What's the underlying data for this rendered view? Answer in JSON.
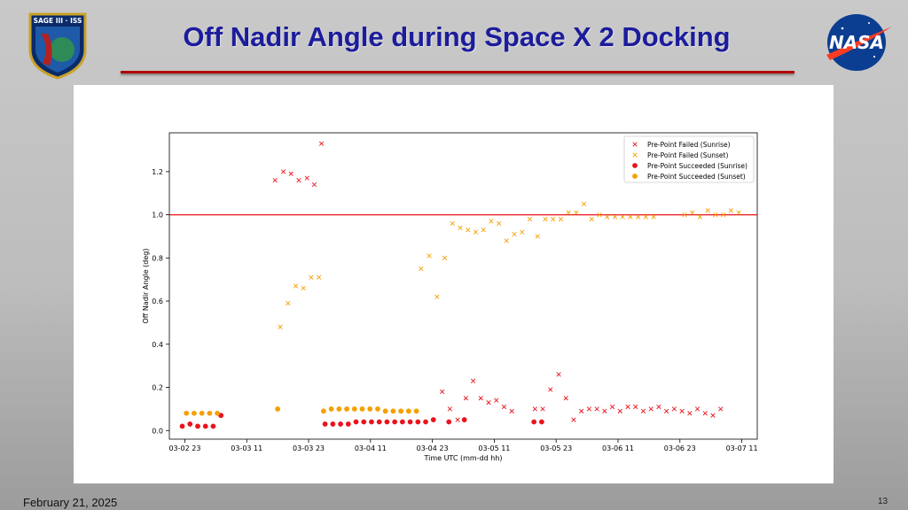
{
  "slide": {
    "title": "Off Nadir Angle during Space X 2 Docking",
    "date": "February 21, 2025",
    "page_number": "13",
    "logo_left_text": "SAGE III · ISS",
    "logo_right_text": "NASA"
  },
  "colors": {
    "title": "#1c1c9c",
    "rule": "#b00000",
    "sunrise": "#e8141c",
    "sunset": "#f5a000",
    "reference_line": "#e8141c"
  },
  "chart_data": {
    "type": "scatter",
    "xlabel": "Time UTC (mm-dd hh)",
    "ylabel": "Off Nadir Angle (deg)",
    "x_ticks": [
      "03-02 23",
      "03-03 11",
      "03-03 23",
      "03-04 11",
      "03-04 23",
      "03-05 11",
      "03-05 23",
      "03-06 11",
      "03-06 23",
      "03-07 11"
    ],
    "x_tick_values": [
      0,
      12,
      24,
      36,
      48,
      60,
      72,
      84,
      96,
      108
    ],
    "x_unit": "hours from 03-02 23",
    "xlim": [
      -3,
      111
    ],
    "ylim": [
      -0.04,
      1.38
    ],
    "y_ticks": [
      0.0,
      0.2,
      0.4,
      0.6,
      0.8,
      1.0,
      1.2
    ],
    "y_tick_labels": [
      "0.0",
      "0.2",
      "0.4",
      "0.6",
      "0.8",
      "1.0",
      "1.2"
    ],
    "reference_line": 1.0,
    "legend_position": "top-right",
    "series": [
      {
        "name": "Pre-Point Failed (Sunrise)",
        "marker": "x",
        "color": "#e8141c",
        "points": [
          [
            17.5,
            1.16
          ],
          [
            19.1,
            1.2
          ],
          [
            20.6,
            1.19
          ],
          [
            22.1,
            1.16
          ],
          [
            23.7,
            1.17
          ],
          [
            25.1,
            1.14
          ],
          [
            26.5,
            1.33
          ],
          [
            49.9,
            0.18
          ],
          [
            51.4,
            0.1
          ],
          [
            52.9,
            0.05
          ],
          [
            54.5,
            0.15
          ],
          [
            55.9,
            0.23
          ],
          [
            57.4,
            0.15
          ],
          [
            58.9,
            0.13
          ],
          [
            60.4,
            0.14
          ],
          [
            61.9,
            0.11
          ],
          [
            63.4,
            0.09
          ],
          [
            67.9,
            0.1
          ],
          [
            69.4,
            0.1
          ],
          [
            70.9,
            0.19
          ],
          [
            72.5,
            0.26
          ],
          [
            73.9,
            0.15
          ],
          [
            75.4,
            0.05
          ],
          [
            76.9,
            0.09
          ],
          [
            78.4,
            0.1
          ],
          [
            79.9,
            0.1
          ],
          [
            81.4,
            0.09
          ],
          [
            82.9,
            0.11
          ],
          [
            84.4,
            0.09
          ],
          [
            85.9,
            0.11
          ],
          [
            87.4,
            0.11
          ],
          [
            88.9,
            0.09
          ],
          [
            90.4,
            0.1
          ],
          [
            91.9,
            0.11
          ],
          [
            93.4,
            0.09
          ],
          [
            94.9,
            0.1
          ],
          [
            96.4,
            0.09
          ],
          [
            97.9,
            0.08
          ],
          [
            99.4,
            0.1
          ],
          [
            100.9,
            0.08
          ],
          [
            102.4,
            0.07
          ],
          [
            103.9,
            0.1
          ]
        ]
      },
      {
        "name": "Pre-Point Failed (Sunset)",
        "marker": "x",
        "color": "#f5a000",
        "points": [
          [
            18.5,
            0.48
          ],
          [
            20.0,
            0.59
          ],
          [
            21.5,
            0.67
          ],
          [
            23.0,
            0.66
          ],
          [
            24.5,
            0.71
          ],
          [
            26.0,
            0.71
          ],
          [
            45.8,
            0.75
          ],
          [
            47.4,
            0.81
          ],
          [
            48.9,
            0.62
          ],
          [
            50.4,
            0.8
          ],
          [
            51.9,
            0.96
          ],
          [
            53.4,
            0.94
          ],
          [
            54.9,
            0.93
          ],
          [
            56.4,
            0.92
          ],
          [
            57.9,
            0.93
          ],
          [
            59.4,
            0.97
          ],
          [
            60.9,
            0.96
          ],
          [
            62.4,
            0.88
          ],
          [
            63.9,
            0.91
          ],
          [
            65.4,
            0.92
          ],
          [
            66.9,
            0.98
          ],
          [
            68.4,
            0.9
          ],
          [
            69.9,
            0.98
          ],
          [
            71.4,
            0.98
          ],
          [
            72.9,
            0.98
          ],
          [
            74.4,
            1.01
          ],
          [
            75.9,
            1.01
          ],
          [
            77.4,
            1.05
          ],
          [
            78.9,
            0.98
          ],
          [
            80.4,
            1.0
          ],
          [
            81.9,
            0.99
          ],
          [
            83.4,
            0.99
          ],
          [
            84.9,
            0.99
          ],
          [
            86.4,
            0.99
          ],
          [
            87.9,
            0.99
          ],
          [
            89.4,
            0.99
          ],
          [
            90.9,
            0.99
          ],
          [
            96.9,
            1.0
          ],
          [
            98.4,
            1.01
          ],
          [
            99.9,
            0.99
          ],
          [
            101.4,
            1.02
          ],
          [
            102.9,
            1.0
          ],
          [
            104.4,
            1.0
          ],
          [
            105.9,
            1.02
          ],
          [
            107.4,
            1.01
          ]
        ]
      },
      {
        "name": "Pre-Point Succeeded (Sunrise)",
        "marker": "o",
        "color": "#e8141c",
        "points": [
          [
            -0.5,
            0.02
          ],
          [
            1.0,
            0.03
          ],
          [
            2.5,
            0.02
          ],
          [
            4.0,
            0.02
          ],
          [
            5.5,
            0.02
          ],
          [
            7.0,
            0.07
          ],
          [
            27.2,
            0.03
          ],
          [
            28.7,
            0.03
          ],
          [
            30.2,
            0.03
          ],
          [
            31.7,
            0.03
          ],
          [
            33.2,
            0.04
          ],
          [
            34.7,
            0.04
          ],
          [
            36.2,
            0.04
          ],
          [
            37.7,
            0.04
          ],
          [
            39.2,
            0.04
          ],
          [
            40.7,
            0.04
          ],
          [
            42.2,
            0.04
          ],
          [
            43.7,
            0.04
          ],
          [
            45.2,
            0.04
          ],
          [
            46.7,
            0.04
          ],
          [
            48.2,
            0.05
          ],
          [
            51.2,
            0.04
          ],
          [
            54.2,
            0.05
          ],
          [
            67.7,
            0.04
          ],
          [
            69.2,
            0.04
          ]
        ]
      },
      {
        "name": "Pre-Point Succeeded (Sunset)",
        "marker": "o",
        "color": "#f5a000",
        "points": [
          [
            0.3,
            0.08
          ],
          [
            1.8,
            0.08
          ],
          [
            3.3,
            0.08
          ],
          [
            4.8,
            0.08
          ],
          [
            6.3,
            0.08
          ],
          [
            18.0,
            0.1
          ],
          [
            26.9,
            0.09
          ],
          [
            28.4,
            0.1
          ],
          [
            29.9,
            0.1
          ],
          [
            31.4,
            0.1
          ],
          [
            32.9,
            0.1
          ],
          [
            34.4,
            0.1
          ],
          [
            35.9,
            0.1
          ],
          [
            37.4,
            0.1
          ],
          [
            38.9,
            0.09
          ],
          [
            40.4,
            0.09
          ],
          [
            41.9,
            0.09
          ],
          [
            43.4,
            0.09
          ],
          [
            44.9,
            0.09
          ]
        ]
      }
    ]
  }
}
